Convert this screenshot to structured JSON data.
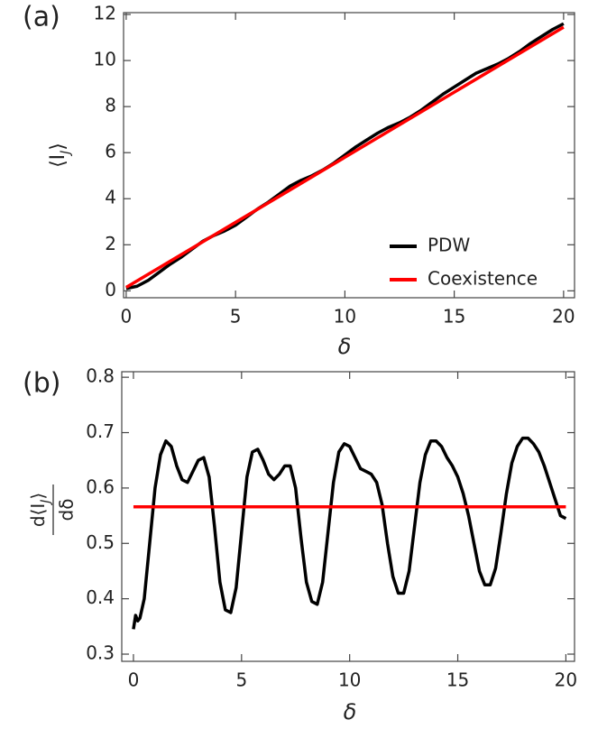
{
  "chart_data": [
    {
      "type": "line",
      "panel_label": "(a)",
      "x_label": "δ",
      "y_label": [
        "⟨I",
        "J",
        "⟩"
      ],
      "xlim": [
        -0.12,
        20.5
      ],
      "ylim": [
        -0.3,
        12.08
      ],
      "xticks": [
        0,
        5,
        10,
        15,
        20
      ],
      "yticks": [
        0,
        2,
        4,
        6,
        8,
        10,
        12
      ],
      "legend": "lower right",
      "series": [
        {
          "name": "PDW",
          "color": "#000000",
          "x": [
            0,
            0.5,
            1,
            1.5,
            2,
            2.5,
            3,
            3.5,
            4,
            4.5,
            5,
            5.5,
            6,
            6.5,
            7,
            7.5,
            8,
            8.5,
            9,
            9.5,
            10,
            10.5,
            11,
            11.5,
            12,
            12.5,
            13,
            13.5,
            14,
            14.5,
            15,
            15.5,
            16,
            16.5,
            17,
            17.5,
            18,
            18.5,
            19,
            19.5,
            20
          ],
          "values": [
            0.1,
            0.2,
            0.45,
            0.8,
            1.15,
            1.45,
            1.8,
            2.15,
            2.4,
            2.6,
            2.85,
            3.2,
            3.55,
            3.85,
            4.2,
            4.55,
            4.8,
            5.0,
            5.25,
            5.55,
            5.9,
            6.25,
            6.55,
            6.85,
            7.1,
            7.3,
            7.55,
            7.85,
            8.2,
            8.55,
            8.85,
            9.15,
            9.45,
            9.65,
            9.85,
            10.1,
            10.4,
            10.75,
            11.05,
            11.35,
            11.6
          ]
        },
        {
          "name": "Coexistence",
          "color": "#ff0000",
          "x": [
            0,
            20
          ],
          "values": [
            0.15,
            11.45
          ]
        }
      ]
    },
    {
      "type": "line",
      "panel_label": "(b)",
      "x_label": "δ",
      "y_label": {
        "numerator": [
          "d⟨I",
          "J",
          "⟩"
        ],
        "denominator": "dδ"
      },
      "xlim": [
        -0.54,
        20.4
      ],
      "ylim": [
        0.287,
        0.81
      ],
      "xticks": [
        0,
        5,
        10,
        15,
        20
      ],
      "yticks": [
        0.3,
        0.4,
        0.5,
        0.6,
        0.7,
        0.8
      ],
      "series": [
        {
          "name": "PDW",
          "color": "#000000",
          "x": [
            0,
            0.1,
            0.2,
            0.3,
            0.5,
            0.75,
            1,
            1.25,
            1.5,
            1.75,
            2,
            2.25,
            2.5,
            2.75,
            3,
            3.25,
            3.5,
            3.75,
            4,
            4.25,
            4.5,
            4.75,
            5,
            5.25,
            5.5,
            5.75,
            6,
            6.25,
            6.5,
            6.75,
            7,
            7.25,
            7.5,
            7.75,
            8,
            8.25,
            8.5,
            8.75,
            9,
            9.25,
            9.5,
            9.75,
            10,
            10.25,
            10.5,
            10.75,
            11,
            11.25,
            11.5,
            11.75,
            12,
            12.25,
            12.5,
            12.75,
            13,
            13.25,
            13.5,
            13.75,
            14,
            14.25,
            14.5,
            14.75,
            15,
            15.25,
            15.5,
            15.75,
            16,
            16.25,
            16.5,
            16.75,
            17,
            17.25,
            17.5,
            17.75,
            18,
            18.25,
            18.5,
            18.75,
            19,
            19.25,
            19.5,
            19.75,
            20
          ],
          "values": [
            0.345,
            0.37,
            0.36,
            0.365,
            0.4,
            0.5,
            0.6,
            0.66,
            0.685,
            0.675,
            0.64,
            0.615,
            0.61,
            0.63,
            0.65,
            0.655,
            0.62,
            0.53,
            0.43,
            0.38,
            0.375,
            0.42,
            0.52,
            0.62,
            0.665,
            0.67,
            0.65,
            0.625,
            0.615,
            0.625,
            0.64,
            0.64,
            0.6,
            0.51,
            0.43,
            0.395,
            0.39,
            0.43,
            0.52,
            0.61,
            0.665,
            0.68,
            0.675,
            0.655,
            0.635,
            0.63,
            0.625,
            0.61,
            0.57,
            0.5,
            0.44,
            0.41,
            0.41,
            0.45,
            0.53,
            0.61,
            0.66,
            0.685,
            0.685,
            0.675,
            0.655,
            0.64,
            0.62,
            0.59,
            0.55,
            0.5,
            0.45,
            0.425,
            0.425,
            0.455,
            0.52,
            0.59,
            0.645,
            0.675,
            0.69,
            0.69,
            0.68,
            0.665,
            0.64,
            0.61,
            0.58,
            0.55,
            0.545
          ]
        },
        {
          "name": "Coexistence",
          "color": "#ff0000",
          "x": [
            0,
            20
          ],
          "values": [
            0.566,
            0.566
          ]
        }
      ]
    }
  ]
}
